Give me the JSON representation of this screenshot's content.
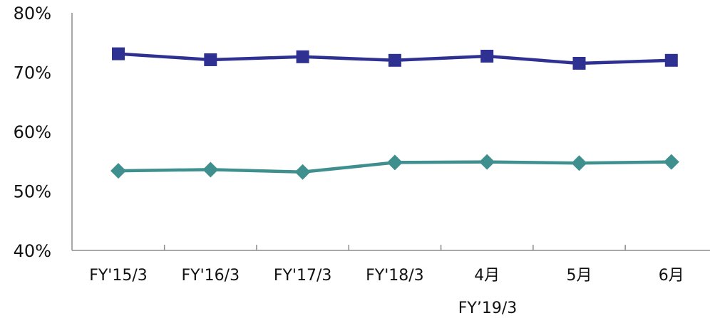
{
  "chart_data": {
    "type": "line",
    "categories": [
      "FY'15/3",
      "FY'16/3",
      "FY'17/3",
      "FY'18/3",
      "4月",
      "5月",
      "6月"
    ],
    "group_label": "FY’19/3",
    "ylim": [
      40,
      80
    ],
    "yticks": [
      "40%",
      "50%",
      "60%",
      "70%",
      "80%"
    ],
    "ytick_values": [
      40,
      50,
      60,
      70,
      80
    ],
    "grid": false,
    "series": [
      {
        "marker": "square",
        "color": "#2e3192",
        "values": [
          73.1,
          72.1,
          72.6,
          72.0,
          72.7,
          71.5,
          72.0
        ]
      },
      {
        "marker": "diamond",
        "color": "#3f8f8f",
        "values": [
          53.4,
          53.6,
          53.2,
          54.8,
          54.9,
          54.7,
          54.9
        ]
      }
    ]
  }
}
